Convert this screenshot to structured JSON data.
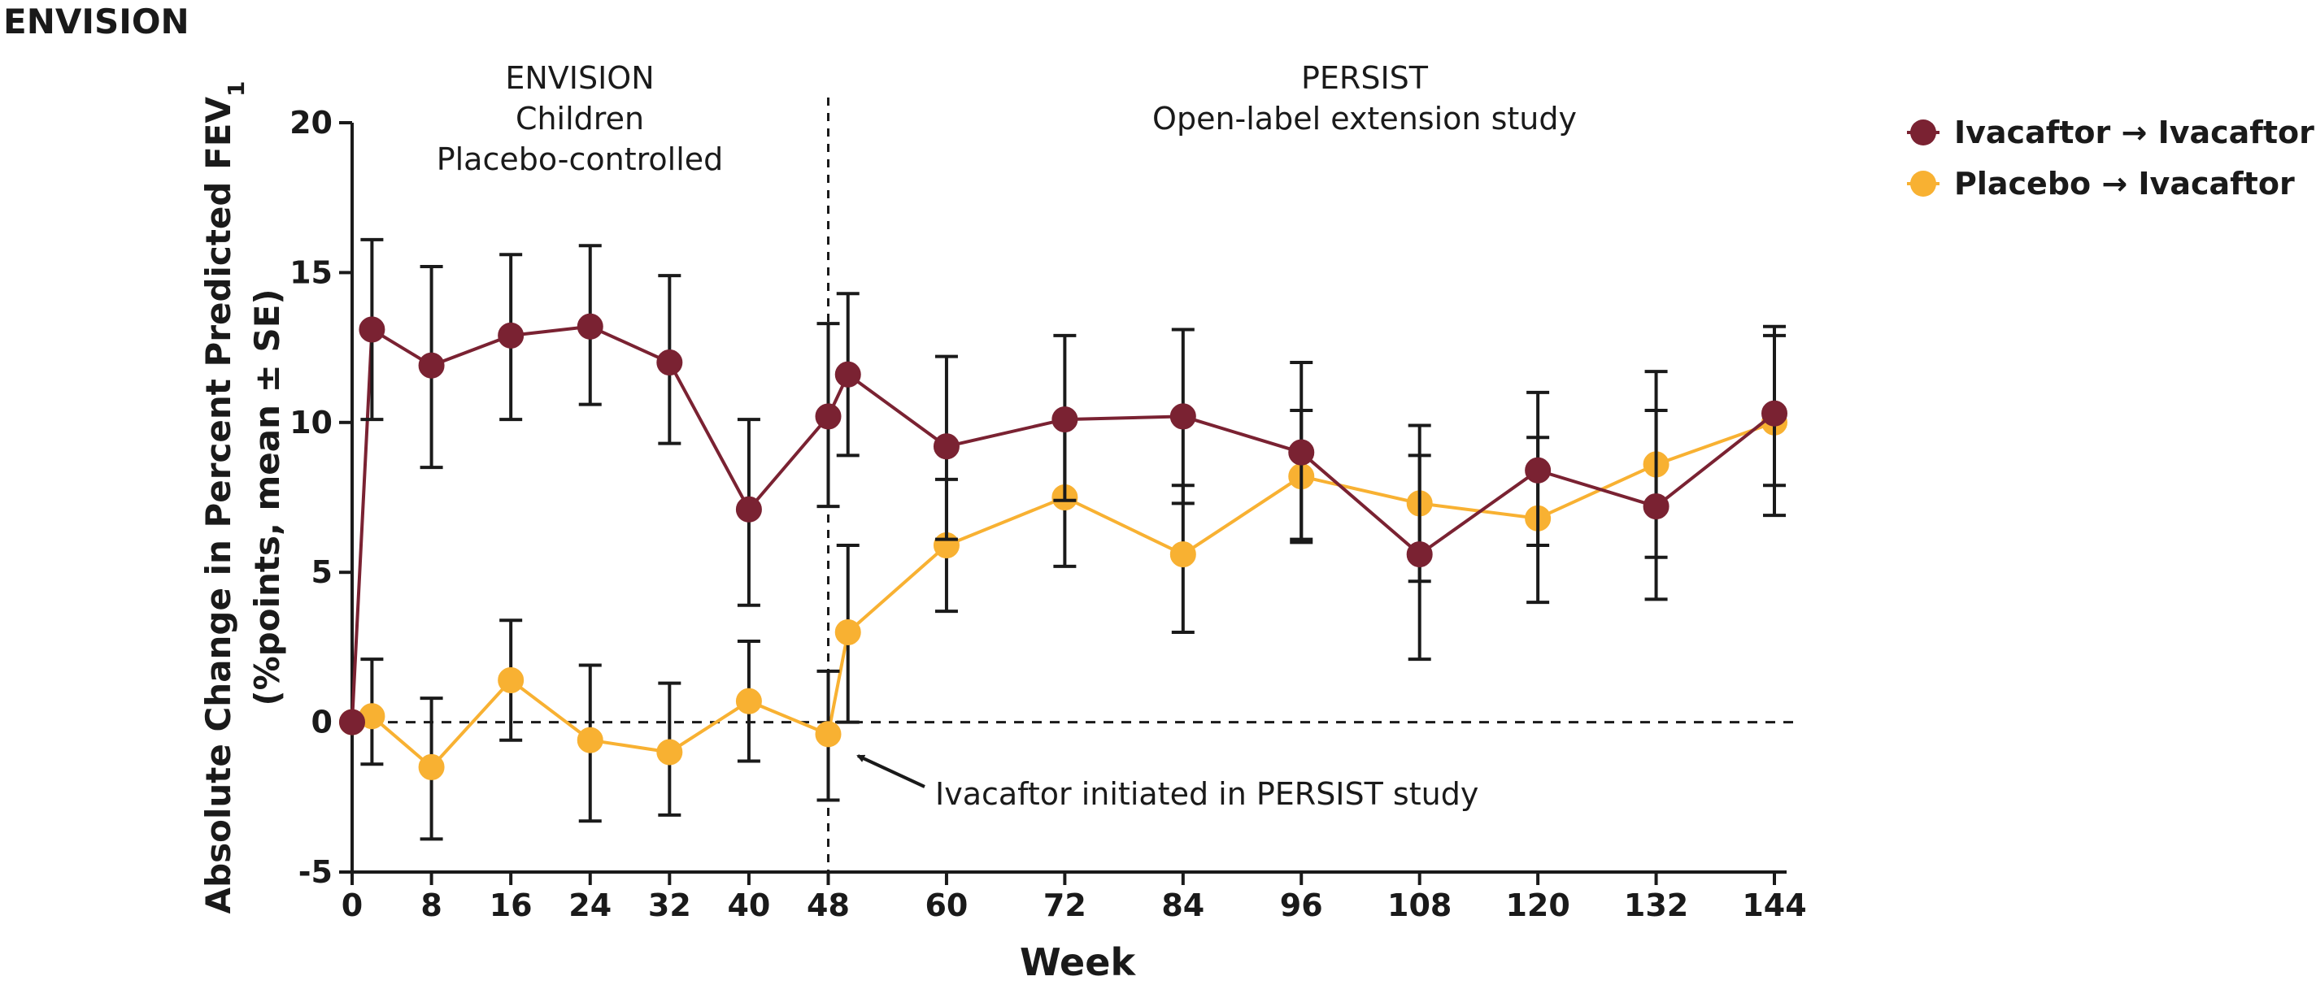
{
  "figure_title": "ENVISION",
  "chart_data": {
    "type": "line",
    "title": "",
    "xlabel": "Week",
    "ylabel_line1": "Absolute Change in Percent Predicted FEV",
    "ylabel_subscript": "1",
    "ylabel_line2": "(%points, mean ± SE)",
    "ylim": [
      -5,
      20
    ],
    "y_ticks": [
      "-5",
      "0",
      "5",
      "10",
      "15",
      "20"
    ],
    "x_ticks": [
      "0",
      "8",
      "16",
      "24",
      "32",
      "40",
      "48",
      "60",
      "72",
      "84",
      "96",
      "108",
      "120",
      "132",
      "144"
    ],
    "periods": [
      {
        "lines": [
          "ENVISION",
          "Children",
          "Placebo-controlled"
        ]
      },
      {
        "lines": [
          "PERSIST",
          "Open-label extension study"
        ]
      }
    ],
    "annotation": "Ivacaftor initiated in PERSIST study",
    "legend": "top-right",
    "series": [
      {
        "name": "Ivacaftor → Ivacaftor",
        "color": "#7a2232",
        "points": [
          {
            "week": 0,
            "y": 0.0,
            "lo": null,
            "hi": null
          },
          {
            "week": 2,
            "y": 13.1,
            "lo": 10.1,
            "hi": 16.1
          },
          {
            "week": 8,
            "y": 11.9,
            "lo": 8.5,
            "hi": 15.2
          },
          {
            "week": 16,
            "y": 12.9,
            "lo": 10.1,
            "hi": 15.6
          },
          {
            "week": 24,
            "y": 13.2,
            "lo": 10.6,
            "hi": 15.9
          },
          {
            "week": 32,
            "y": 12.0,
            "lo": 9.3,
            "hi": 14.9
          },
          {
            "week": 40,
            "y": 7.1,
            "lo": 3.9,
            "hi": 10.1
          },
          {
            "week": 48,
            "y": 10.2,
            "lo": 7.2,
            "hi": 13.3
          },
          {
            "week": 50,
            "y": 11.6,
            "lo": 8.9,
            "hi": 14.3
          },
          {
            "week": 60,
            "y": 9.2,
            "lo": 6.1,
            "hi": 12.2
          },
          {
            "week": 72,
            "y": 10.1,
            "lo": 7.4,
            "hi": 12.9
          },
          {
            "week": 84,
            "y": 10.2,
            "lo": 7.3,
            "hi": 13.1
          },
          {
            "week": 96,
            "y": 9.0,
            "lo": 6.0,
            "hi": 12.0
          },
          {
            "week": 108,
            "y": 5.6,
            "lo": 2.1,
            "hi": 8.9
          },
          {
            "week": 120,
            "y": 8.4,
            "lo": 5.9,
            "hi": 11.0
          },
          {
            "week": 132,
            "y": 7.2,
            "lo": 4.1,
            "hi": 10.4
          },
          {
            "week": 144,
            "y": 10.3,
            "lo": 7.9,
            "hi": 12.9
          }
        ]
      },
      {
        "name": "Placebo → Ivacaftor",
        "color": "#f8b132",
        "points": [
          {
            "week": 0,
            "y": 0.0,
            "lo": null,
            "hi": null
          },
          {
            "week": 2,
            "y": 0.2,
            "lo": -1.4,
            "hi": 2.1
          },
          {
            "week": 8,
            "y": -1.5,
            "lo": -3.9,
            "hi": 0.8
          },
          {
            "week": 16,
            "y": 1.4,
            "lo": -0.6,
            "hi": 3.4
          },
          {
            "week": 24,
            "y": -0.6,
            "lo": -3.3,
            "hi": 1.9
          },
          {
            "week": 32,
            "y": -1.0,
            "lo": -3.1,
            "hi": 1.3
          },
          {
            "week": 40,
            "y": 0.7,
            "lo": -1.3,
            "hi": 2.7
          },
          {
            "week": 48,
            "y": -0.4,
            "lo": -2.6,
            "hi": 1.7
          },
          {
            "week": 50,
            "y": 3.0,
            "lo": 0.0,
            "hi": 5.9
          },
          {
            "week": 60,
            "y": 5.9,
            "lo": 3.7,
            "hi": 8.1
          },
          {
            "week": 72,
            "y": 7.5,
            "lo": 5.2,
            "hi": 10.1
          },
          {
            "week": 84,
            "y": 5.6,
            "lo": 3.0,
            "hi": 7.9
          },
          {
            "week": 96,
            "y": 8.2,
            "lo": 6.1,
            "hi": 10.4
          },
          {
            "week": 108,
            "y": 7.3,
            "lo": 4.7,
            "hi": 9.9
          },
          {
            "week": 120,
            "y": 6.8,
            "lo": 4.0,
            "hi": 9.5
          },
          {
            "week": 132,
            "y": 8.6,
            "lo": 5.5,
            "hi": 11.7
          },
          {
            "week": 144,
            "y": 10.0,
            "lo": 6.9,
            "hi": 13.2
          }
        ]
      }
    ]
  }
}
